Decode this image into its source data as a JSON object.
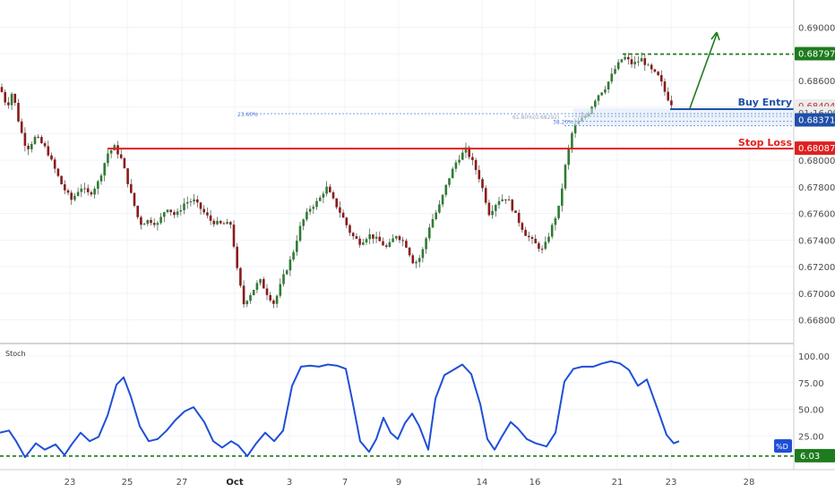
{
  "chart_data": [
    {
      "type": "candlestick",
      "ylim": [
        0.6665,
        0.6915
      ],
      "y_ticks": [
        "0.69000",
        "0.68600",
        "0.68400",
        "0.68000",
        "0.67800",
        "0.67600",
        "0.67400",
        "0.67200",
        "0.67000",
        "0.66800"
      ],
      "x_ticks": [
        "23",
        "25",
        "27",
        "Oct",
        "3",
        "7",
        "9",
        "14",
        "16",
        "21",
        "23",
        "28"
      ],
      "price_path": [
        [
          0,
          0.6855
        ],
        [
          8,
          0.684
        ],
        [
          14,
          0.6852
        ],
        [
          22,
          0.6825
        ],
        [
          30,
          0.6808
        ],
        [
          40,
          0.6818
        ],
        [
          52,
          0.6808
        ],
        [
          62,
          0.6792
        ],
        [
          70,
          0.678
        ],
        [
          80,
          0.677
        ],
        [
          90,
          0.678
        ],
        [
          100,
          0.6774
        ],
        [
          110,
          0.6784
        ],
        [
          120,
          0.6805
        ],
        [
          128,
          0.681
        ],
        [
          136,
          0.68
        ],
        [
          146,
          0.6775
        ],
        [
          156,
          0.6752
        ],
        [
          166,
          0.6755
        ],
        [
          176,
          0.6752
        ],
        [
          186,
          0.6765
        ],
        [
          196,
          0.6758
        ],
        [
          206,
          0.6768
        ],
        [
          216,
          0.677
        ],
        [
          226,
          0.6762
        ],
        [
          236,
          0.6754
        ],
        [
          246,
          0.6752
        ],
        [
          258,
          0.6752
        ],
        [
          264,
          0.672
        ],
        [
          272,
          0.6692
        ],
        [
          280,
          0.67
        ],
        [
          290,
          0.671
        ],
        [
          298,
          0.67
        ],
        [
          306,
          0.6692
        ],
        [
          316,
          0.6712
        ],
        [
          326,
          0.6728
        ],
        [
          336,
          0.6752
        ],
        [
          346,
          0.6764
        ],
        [
          356,
          0.677
        ],
        [
          364,
          0.678
        ],
        [
          372,
          0.677
        ],
        [
          382,
          0.6758
        ],
        [
          392,
          0.6744
        ],
        [
          402,
          0.6738
        ],
        [
          412,
          0.6744
        ],
        [
          422,
          0.674
        ],
        [
          432,
          0.6734
        ],
        [
          442,
          0.6744
        ],
        [
          452,
          0.6738
        ],
        [
          462,
          0.6722
        ],
        [
          470,
          0.6728
        ],
        [
          480,
          0.6752
        ],
        [
          490,
          0.6765
        ],
        [
          500,
          0.6785
        ],
        [
          510,
          0.68
        ],
        [
          520,
          0.6808
        ],
        [
          528,
          0.6798
        ],
        [
          536,
          0.6785
        ],
        [
          546,
          0.676
        ],
        [
          556,
          0.677
        ],
        [
          566,
          0.6772
        ],
        [
          576,
          0.6758
        ],
        [
          586,
          0.6745
        ],
        [
          596,
          0.6738
        ],
        [
          606,
          0.6732
        ],
        [
          616,
          0.675
        ],
        [
          624,
          0.6765
        ],
        [
          632,
          0.68
        ],
        [
          640,
          0.6825
        ],
        [
          648,
          0.683
        ],
        [
          656,
          0.6835
        ],
        [
          666,
          0.6848
        ],
        [
          676,
          0.6855
        ],
        [
          686,
          0.6868
        ],
        [
          696,
          0.6878
        ],
        [
          706,
          0.6872
        ],
        [
          716,
          0.6876
        ],
        [
          726,
          0.6868
        ],
        [
          736,
          0.6862
        ],
        [
          744,
          0.6848
        ],
        [
          752,
          0.684
        ]
      ],
      "annotations": {
        "buy_entry": {
          "label": "Buy Entry",
          "price": 0.68404
        },
        "stop_loss": {
          "label": "Stop Loss",
          "price": 0.68087
        },
        "target": {
          "price": 0.68797
        },
        "fib_labels": [
          "23.60%",
          "61.80%(0.68292)",
          "38.20%"
        ],
        "price_badges": [
          {
            "text": "0.68797",
            "price": 0.68797,
            "color": "#1e7b1e"
          },
          {
            "text": "0.68404",
            "price": 0.68404,
            "color": "#ececec",
            "text_color": "#c43030"
          },
          {
            "text": "01:16:09",
            "price": 0.6835,
            "color": "#ececec",
            "text_color": "#555555"
          },
          {
            "text": "0.68371",
            "price": 0.683,
            "color": "#1f4fa8"
          },
          {
            "text": "0.68087",
            "price": 0.68087,
            "color": "#e02020"
          }
        ]
      }
    },
    {
      "type": "line",
      "title": "Stoch",
      "ylim": [
        0,
        100
      ],
      "y_ticks": [
        "100.00",
        "75.00",
        "50.00",
        "25.00"
      ],
      "series": [
        {
          "name": "%D",
          "color": "#1f4fd8",
          "values": [
            [
              0,
              28
            ],
            [
              10,
              30
            ],
            [
              18,
              20
            ],
            [
              28,
              5
            ],
            [
              40,
              18
            ],
            [
              50,
              12
            ],
            [
              62,
              17
            ],
            [
              72,
              7
            ],
            [
              80,
              17
            ],
            [
              90,
              28
            ],
            [
              100,
              20
            ],
            [
              110,
              24
            ],
            [
              120,
              44
            ],
            [
              130,
              73
            ],
            [
              138,
              80
            ],
            [
              146,
              62
            ],
            [
              156,
              34
            ],
            [
              166,
              20
            ],
            [
              176,
              22
            ],
            [
              186,
              30
            ],
            [
              196,
              40
            ],
            [
              206,
              48
            ],
            [
              216,
              52
            ],
            [
              228,
              38
            ],
            [
              238,
              20
            ],
            [
              248,
              14
            ],
            [
              258,
              20
            ],
            [
              266,
              16
            ],
            [
              276,
              6
            ],
            [
              286,
              18
            ],
            [
              296,
              28
            ],
            [
              306,
              20
            ],
            [
              316,
              30
            ],
            [
              326,
              72
            ],
            [
              336,
              90
            ],
            [
              346,
              91
            ],
            [
              356,
              90
            ],
            [
              366,
              92
            ],
            [
              376,
              91
            ],
            [
              386,
              88
            ],
            [
              394,
              55
            ],
            [
              402,
              20
            ],
            [
              412,
              10
            ],
            [
              420,
              22
            ],
            [
              428,
              42
            ],
            [
              436,
              28
            ],
            [
              444,
              22
            ],
            [
              452,
              37
            ],
            [
              460,
              46
            ],
            [
              468,
              34
            ],
            [
              478,
              12
            ],
            [
              486,
              60
            ],
            [
              496,
              82
            ],
            [
              506,
              87
            ],
            [
              516,
              92
            ],
            [
              526,
              83
            ],
            [
              536,
              55
            ],
            [
              544,
              22
            ],
            [
              552,
              12
            ],
            [
              560,
              24
            ],
            [
              570,
              38
            ],
            [
              578,
              32
            ],
            [
              588,
              22
            ],
            [
              598,
              18
            ],
            [
              610,
              15
            ],
            [
              620,
              28
            ],
            [
              630,
              76
            ],
            [
              640,
              88
            ],
            [
              650,
              90
            ],
            [
              662,
              90
            ],
            [
              672,
              93
            ],
            [
              682,
              95
            ],
            [
              692,
              93
            ],
            [
              702,
              87
            ],
            [
              712,
              72
            ],
            [
              722,
              78
            ],
            [
              734,
              50
            ],
            [
              744,
              26
            ],
            [
              752,
              18
            ],
            [
              758,
              20
            ]
          ]
        }
      ],
      "level_label": "6.03",
      "legend_badge": "%D"
    }
  ]
}
